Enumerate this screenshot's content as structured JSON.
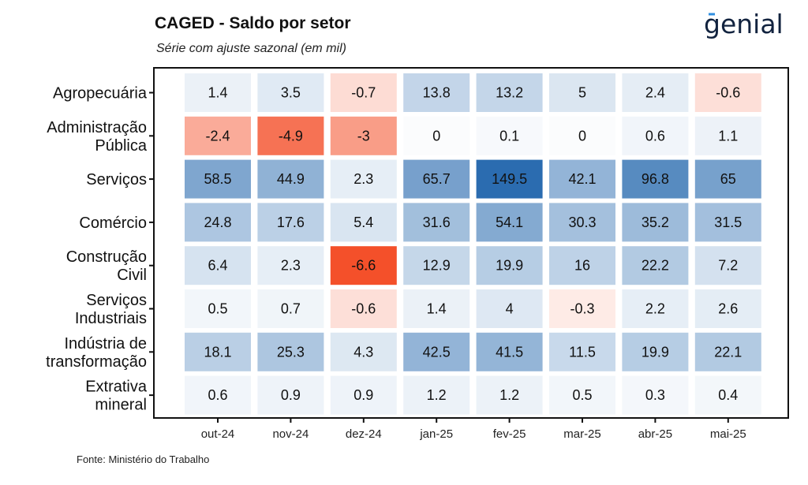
{
  "header": {
    "title": "CAGED - Saldo por setor",
    "subtitle": "Série com ajuste sazonal (em mil)",
    "logo_text": "genial"
  },
  "footer": {
    "source": "Fonte: Ministério do Trabalho"
  },
  "colors": {
    "positive_max": "#2b6cb0",
    "negative_max": "#f4502a",
    "neutral": "#ffffff"
  },
  "chart_data": {
    "type": "heatmap",
    "title": "CAGED - Saldo por setor",
    "subtitle": "Série com ajuste sazonal (em mil)",
    "x": [
      "out-24",
      "nov-24",
      "dez-24",
      "jan-25",
      "fev-25",
      "mar-25",
      "abr-25",
      "mai-25"
    ],
    "y": [
      [
        "Agropecuária"
      ],
      [
        "Administração",
        "Pública"
      ],
      [
        "Serviços"
      ],
      [
        "Comércio"
      ],
      [
        "Construção",
        "Civil"
      ],
      [
        "Serviços",
        "Industriais"
      ],
      [
        "Indústria de",
        "transformação"
      ],
      [
        "Extrativa",
        "mineral"
      ]
    ],
    "values": [
      [
        1.4,
        3.5,
        -0.7,
        13.8,
        13.2,
        5,
        2.4,
        -0.6
      ],
      [
        -2.4,
        -4.9,
        -3,
        0,
        0.1,
        0,
        0.6,
        1.1
      ],
      [
        58.5,
        44.9,
        2.3,
        65.7,
        149.5,
        42.1,
        96.8,
        65
      ],
      [
        24.8,
        17.6,
        5.4,
        31.6,
        54.1,
        30.3,
        35.2,
        31.5
      ],
      [
        6.4,
        2.3,
        -6.6,
        12.9,
        19.9,
        16,
        22.2,
        7.2
      ],
      [
        0.5,
        0.7,
        -0.6,
        1.4,
        4,
        -0.3,
        2.2,
        2.6
      ],
      [
        18.1,
        25.3,
        4.3,
        42.5,
        41.5,
        11.5,
        19.9,
        22.1
      ],
      [
        0.6,
        0.9,
        0.9,
        1.2,
        1.2,
        0.5,
        0.3,
        0.4
      ]
    ]
  }
}
